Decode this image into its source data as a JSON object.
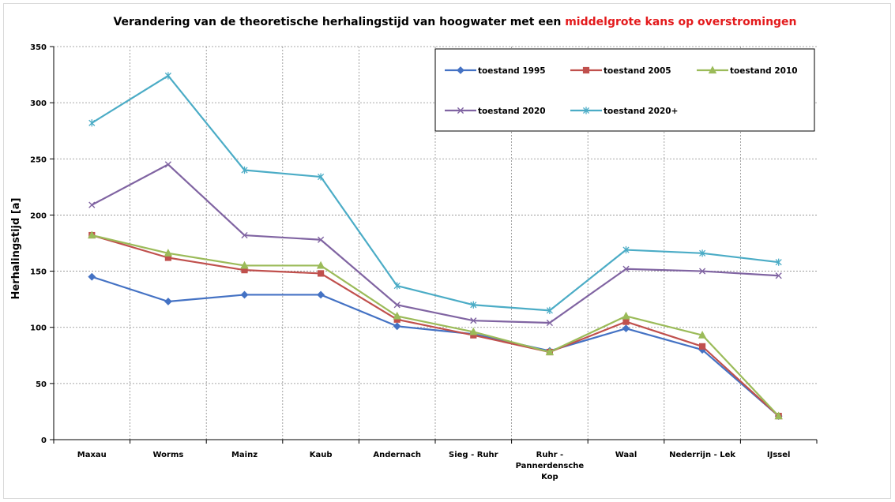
{
  "chart_data": {
    "type": "line",
    "title_prefix": "Verandering van de theoretische herhalingstijd van hoogwater met een ",
    "title_highlight": "middelgrote kans op overstromingen",
    "ylabel": "Herhalingstijd [a]",
    "xlabel": "",
    "ylim": [
      0,
      350
    ],
    "yticks": [
      0,
      50,
      100,
      150,
      200,
      250,
      300,
      350
    ],
    "grid": true,
    "legend_position": "top-right",
    "categories": [
      [
        "Maxau"
      ],
      [
        "Worms"
      ],
      [
        "Mainz"
      ],
      [
        "Kaub"
      ],
      [
        "Andernach"
      ],
      [
        "Sieg - Ruhr"
      ],
      [
        "Ruhr -",
        "Pannerdensche",
        "Kop"
      ],
      [
        "Waal"
      ],
      [
        "Nederrijn - Lek"
      ],
      [
        "IJssel"
      ]
    ],
    "series": [
      {
        "name": "toestand 1995",
        "color": "#4472c4",
        "marker": "diamond",
        "values": [
          145,
          123,
          129,
          129,
          101,
          94,
          79,
          99,
          80,
          21
        ]
      },
      {
        "name": "toestand 2005",
        "color": "#c0504d",
        "marker": "square",
        "values": [
          182,
          162,
          151,
          148,
          107,
          93,
          78,
          105,
          83,
          21
        ]
      },
      {
        "name": "toestand 2010",
        "color": "#9bbb59",
        "marker": "triangle",
        "values": [
          182,
          166,
          155,
          155,
          110,
          96,
          78,
          110,
          93,
          21
        ]
      },
      {
        "name": "toestand 2020",
        "color": "#8064a2",
        "marker": "x",
        "values": [
          209,
          245,
          182,
          178,
          120,
          106,
          104,
          152,
          150,
          146
        ]
      },
      {
        "name": "toestand 2020+",
        "color": "#4bacc6",
        "marker": "star",
        "values": [
          282,
          324,
          240,
          234,
          137,
          120,
          115,
          169,
          166,
          158
        ]
      }
    ]
  }
}
